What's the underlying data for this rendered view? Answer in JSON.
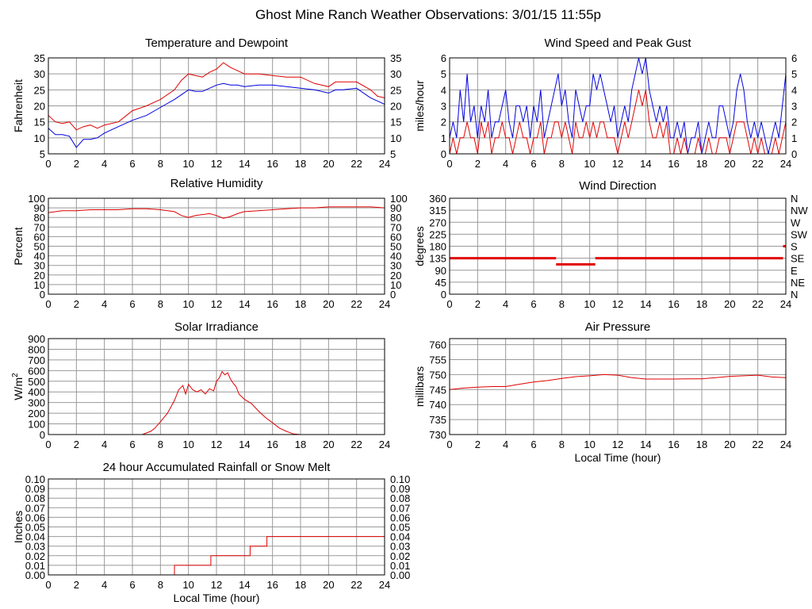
{
  "page_title": "Ghost Mine Ranch Weather Observations: 3/01/15 11:55p",
  "colors": {
    "primary": "#e00000",
    "secondary": "#0000e0",
    "grid": "#999999",
    "frame": "#000000"
  },
  "chart_data": [
    {
      "id": "temperature",
      "type": "line",
      "title": "Temperature and Dewpoint",
      "xlabel": "",
      "ylabel": "Fahrenheit",
      "xlim": [
        0,
        24
      ],
      "ylim": [
        5,
        35
      ],
      "x_ticks": [
        "0",
        "2",
        "4",
        "6",
        "8",
        "10",
        "12",
        "14",
        "16",
        "18",
        "20",
        "22",
        "24"
      ],
      "y_ticks": [
        "5",
        "10",
        "15",
        "20",
        "25",
        "30",
        "35"
      ],
      "right_ticks": [
        "5",
        "10",
        "15",
        "20",
        "25",
        "30",
        "35"
      ],
      "series": [
        {
          "color": "#e00000",
          "x": [
            0,
            0.5,
            1,
            1.5,
            2,
            2.5,
            3,
            3.5,
            4,
            5,
            6,
            7,
            8,
            9,
            9.5,
            10,
            10.5,
            11,
            11.5,
            12,
            12.5,
            13,
            13.5,
            14,
            15,
            16,
            17,
            18,
            19,
            19.5,
            20,
            20.5,
            21,
            22,
            23,
            23.5,
            24
          ],
          "values": [
            17,
            15,
            14.5,
            15,
            12.5,
            13.5,
            14,
            13,
            14,
            15,
            18.5,
            20,
            22,
            25,
            28,
            30,
            29.5,
            29,
            30.5,
            31.5,
            33.5,
            32,
            31,
            30,
            30,
            29.5,
            29,
            29,
            27,
            26.5,
            26,
            27.5,
            27.5,
            27.5,
            25,
            23,
            22.5
          ]
        },
        {
          "color": "#0000e0",
          "x": [
            0,
            0.5,
            1,
            1.5,
            2,
            2.5,
            3,
            3.5,
            4,
            5,
            6,
            7,
            8,
            9,
            9.5,
            10,
            10.5,
            11,
            11.5,
            12,
            12.5,
            13,
            13.5,
            14,
            15,
            16,
            17,
            18,
            19,
            19.5,
            20,
            20.5,
            21,
            22,
            23,
            23.5,
            24
          ],
          "values": [
            13,
            11,
            11,
            10.5,
            7,
            9.5,
            9.5,
            10,
            11.5,
            13.5,
            15.5,
            17,
            19.5,
            22,
            23.5,
            25,
            24.5,
            24.5,
            25.5,
            26.5,
            27,
            26.5,
            26.5,
            26,
            26.5,
            26.5,
            26,
            25.5,
            25,
            24.5,
            24,
            25,
            25,
            25.5,
            22.5,
            21.5,
            20.5
          ]
        }
      ]
    },
    {
      "id": "wind-speed",
      "type": "line",
      "title": "Wind Speed and Peak Gust",
      "xlabel": "",
      "ylabel": "miles/hour",
      "xlim": [
        0,
        24
      ],
      "ylim": [
        0,
        6
      ],
      "x_ticks": [
        "0",
        "2",
        "4",
        "6",
        "8",
        "10",
        "12",
        "14",
        "16",
        "18",
        "20",
        "22",
        "24"
      ],
      "y_ticks": [
        "0",
        "1",
        "2",
        "3",
        "4",
        "5",
        "6"
      ],
      "right_ticks": [
        "0",
        "1",
        "2",
        "3",
        "4",
        "5",
        "6"
      ],
      "series": [
        {
          "color": "#0000e0",
          "x": [
            0,
            0.25,
            0.5,
            0.75,
            1,
            1.25,
            1.5,
            1.75,
            2,
            2.25,
            2.5,
            2.75,
            3,
            3.25,
            3.5,
            3.75,
            4,
            4.25,
            4.5,
            4.75,
            5,
            5.25,
            5.5,
            5.75,
            6,
            6.25,
            6.5,
            6.75,
            7,
            7.25,
            7.5,
            7.75,
            8,
            8.25,
            8.5,
            8.75,
            9,
            9.25,
            9.5,
            9.75,
            10,
            10.25,
            10.5,
            10.75,
            11,
            11.25,
            11.5,
            11.75,
            12,
            12.25,
            12.5,
            12.75,
            13,
            13.25,
            13.5,
            13.75,
            14,
            14.25,
            14.5,
            14.75,
            15,
            15.25,
            15.5,
            15.75,
            16,
            16.25,
            16.5,
            16.75,
            17,
            17.25,
            17.5,
            17.75,
            18,
            18.25,
            18.5,
            18.75,
            19,
            19.25,
            19.5,
            19.75,
            20,
            20.25,
            20.5,
            20.75,
            21,
            21.25,
            21.5,
            21.75,
            22,
            22.25,
            22.5,
            22.75,
            23,
            23.25,
            23.5,
            23.75,
            24
          ],
          "values": [
            1,
            2,
            1,
            4,
            2,
            5,
            2,
            3,
            1,
            3,
            2,
            4,
            1,
            2,
            2,
            3,
            4,
            2,
            1,
            3,
            3,
            2,
            3,
            1,
            3,
            2,
            4,
            1,
            2,
            3,
            4,
            5,
            3,
            4,
            2,
            1,
            4,
            3,
            2,
            3,
            3,
            5,
            4,
            5,
            4,
            3,
            2,
            3,
            1,
            2,
            3,
            2,
            4,
            5,
            6,
            5,
            6,
            4,
            3,
            2,
            3,
            2,
            3,
            1,
            1,
            2,
            1,
            2,
            0,
            1,
            1,
            2,
            0,
            1,
            2,
            1,
            1,
            3,
            3,
            2,
            1,
            2,
            4,
            5,
            4,
            2,
            1,
            2,
            1,
            2,
            1,
            0,
            1,
            2,
            1,
            3,
            5
          ]
        },
        {
          "color": "#e00000",
          "x": [
            0,
            0.25,
            0.5,
            0.75,
            1,
            1.25,
            1.5,
            1.75,
            2,
            2.25,
            2.5,
            2.75,
            3,
            3.25,
            3.5,
            3.75,
            4,
            4.25,
            4.5,
            4.75,
            5,
            5.25,
            5.5,
            5.75,
            6,
            6.25,
            6.5,
            6.75,
            7,
            7.25,
            7.5,
            7.75,
            8,
            8.25,
            8.5,
            8.75,
            9,
            9.25,
            9.5,
            9.75,
            10,
            10.25,
            10.5,
            10.75,
            11,
            11.25,
            11.5,
            11.75,
            12,
            12.25,
            12.5,
            12.75,
            13,
            13.25,
            13.5,
            13.75,
            14,
            14.25,
            14.5,
            14.75,
            15,
            15.25,
            15.5,
            15.75,
            16,
            16.25,
            16.5,
            16.75,
            17,
            17.25,
            17.5,
            17.75,
            18,
            18.25,
            18.5,
            18.75,
            19,
            19.25,
            19.5,
            19.75,
            20,
            20.25,
            20.5,
            20.75,
            21,
            21.25,
            21.5,
            21.75,
            22,
            22.25,
            22.5,
            22.75,
            23,
            23.25,
            23.5,
            23.75,
            24
          ],
          "values": [
            0,
            1,
            0,
            1,
            1,
            2,
            1,
            1,
            0,
            2,
            1,
            2,
            0,
            1,
            1,
            2,
            1,
            1,
            0,
            1,
            2,
            1,
            1,
            0,
            1,
            1,
            2,
            0,
            1,
            1,
            2,
            2,
            1,
            2,
            1,
            0,
            2,
            1,
            1,
            2,
            1,
            2,
            1,
            2,
            2,
            1,
            1,
            1,
            0,
            1,
            2,
            1,
            2,
            3,
            4,
            3,
            4,
            2,
            1,
            1,
            2,
            1,
            2,
            0,
            0,
            1,
            0,
            1,
            0,
            0,
            0,
            1,
            0,
            0,
            1,
            0,
            0,
            1,
            1,
            1,
            0,
            1,
            2,
            2,
            2,
            1,
            0,
            1,
            0,
            1,
            0,
            0,
            0,
            1,
            0,
            1,
            2
          ]
        }
      ]
    },
    {
      "id": "humidity",
      "type": "line",
      "title": "Relative Humidity",
      "xlabel": "",
      "ylabel": "Percent",
      "xlim": [
        0,
        24
      ],
      "ylim": [
        0,
        100
      ],
      "x_ticks": [
        "0",
        "2",
        "4",
        "6",
        "8",
        "10",
        "12",
        "14",
        "16",
        "18",
        "20",
        "22",
        "24"
      ],
      "y_ticks": [
        "0",
        "10",
        "20",
        "30",
        "40",
        "50",
        "60",
        "70",
        "80",
        "90",
        "100"
      ],
      "right_ticks": [
        "0",
        "10",
        "20",
        "30",
        "40",
        "50",
        "60",
        "70",
        "80",
        "90",
        "100"
      ],
      "series": [
        {
          "color": "#e00000",
          "x": [
            0,
            1,
            2,
            3,
            4,
            5,
            6,
            7,
            8,
            9,
            9.5,
            10,
            10.5,
            11,
            11.5,
            12,
            12.5,
            13,
            13.5,
            14,
            15,
            16,
            17,
            18,
            19,
            20,
            21,
            22,
            23,
            24
          ],
          "values": [
            85,
            87,
            87,
            88,
            88,
            88,
            89,
            89,
            88,
            86,
            82,
            80,
            82,
            83,
            84,
            82,
            79,
            81,
            84,
            86,
            87,
            88,
            89,
            90,
            90,
            91,
            91,
            91,
            91,
            90
          ]
        }
      ]
    },
    {
      "id": "wind-direction",
      "type": "line",
      "title": "Wind Direction",
      "xlabel": "",
      "ylabel": "degrees",
      "xlim": [
        0,
        24
      ],
      "ylim": [
        0,
        360
      ],
      "x_ticks": [
        "0",
        "2",
        "4",
        "6",
        "8",
        "10",
        "12",
        "14",
        "16",
        "18",
        "20",
        "22",
        "24"
      ],
      "y_ticks": [
        "0",
        "45",
        "90",
        "135",
        "180",
        "225",
        "270",
        "315",
        "360"
      ],
      "right_ticks": [
        "N",
        "NE",
        "E",
        "SE",
        "S",
        "SW",
        "W",
        "NW",
        "N"
      ],
      "segments": [
        {
          "x": [
            0,
            7.6
          ],
          "value": 135
        },
        {
          "x": [
            7.6,
            10.4
          ],
          "value": 112
        },
        {
          "x": [
            10.4,
            23.8
          ],
          "value": 135
        },
        {
          "x": [
            23.8,
            24
          ],
          "value": 180
        }
      ]
    },
    {
      "id": "solar",
      "type": "line",
      "title": "Solar Irradiance",
      "xlabel": "",
      "ylabel": "W/m",
      "ylabel_sup": "2",
      "xlim": [
        0,
        24
      ],
      "ylim": [
        0,
        900
      ],
      "x_ticks": [
        "0",
        "2",
        "4",
        "6",
        "8",
        "10",
        "12",
        "14",
        "16",
        "18",
        "20",
        "22",
        "24"
      ],
      "y_ticks": [
        "0",
        "100",
        "200",
        "300",
        "400",
        "500",
        "600",
        "700",
        "800",
        "900"
      ],
      "right_ticks": [],
      "series": [
        {
          "color": "#e00000",
          "x": [
            0,
            6.7,
            7,
            7.3,
            7.6,
            8,
            8.5,
            9,
            9.3,
            9.6,
            9.8,
            10,
            10.3,
            10.6,
            10.9,
            11.2,
            11.5,
            11.8,
            12,
            12.2,
            12.4,
            12.6,
            12.8,
            13,
            13.2,
            13.4,
            13.6,
            14,
            14.5,
            15,
            15.5,
            16,
            16.5,
            17,
            17.5,
            18,
            24
          ],
          "values": [
            0,
            0,
            15,
            30,
            60,
            120,
            200,
            320,
            420,
            460,
            380,
            470,
            420,
            400,
            420,
            380,
            430,
            410,
            500,
            530,
            590,
            560,
            580,
            520,
            480,
            450,
            380,
            330,
            290,
            220,
            160,
            110,
            60,
            30,
            5,
            0,
            0
          ]
        }
      ]
    },
    {
      "id": "pressure",
      "type": "line",
      "title": "Air Pressure",
      "xlabel": "Local Time (hour)",
      "ylabel": "millibars",
      "xlim": [
        0,
        24
      ],
      "ylim": [
        730,
        762
      ],
      "x_ticks": [
        "0",
        "2",
        "4",
        "6",
        "8",
        "10",
        "12",
        "14",
        "16",
        "18",
        "20",
        "22",
        "24"
      ],
      "y_ticks": [
        "730",
        "735",
        "740",
        "745",
        "750",
        "755",
        "760"
      ],
      "right_ticks": [],
      "series": [
        {
          "color": "#e00000",
          "x": [
            0,
            1,
            2,
            3,
            4,
            5,
            6,
            7,
            8,
            9,
            10,
            11,
            12,
            13,
            14,
            15,
            16,
            17,
            18,
            19,
            20,
            21,
            22,
            23,
            24
          ],
          "values": [
            745,
            745.5,
            745.8,
            746,
            746,
            746.8,
            747.5,
            748,
            748.7,
            749.3,
            749.6,
            750,
            749.8,
            749,
            748.5,
            748.5,
            748.5,
            748.6,
            748.6,
            749,
            749.4,
            749.6,
            749.8,
            749.2,
            749
          ]
        }
      ]
    },
    {
      "id": "rainfall",
      "type": "line",
      "title": "24 hour Accumulated Rainfall or Snow Melt",
      "xlabel": "Local Time (hour)",
      "ylabel": "Inches",
      "xlim": [
        0,
        24
      ],
      "ylim": [
        0,
        0.1
      ],
      "x_ticks": [
        "0",
        "2",
        "4",
        "6",
        "8",
        "10",
        "12",
        "14",
        "16",
        "18",
        "20",
        "22",
        "24"
      ],
      "y_ticks": [
        "0.00",
        "0.01",
        "0.02",
        "0.03",
        "0.04",
        "0.05",
        "0.06",
        "0.07",
        "0.08",
        "0.09",
        "0.10"
      ],
      "right_ticks": [
        "0.00",
        "0.01",
        "0.02",
        "0.03",
        "0.04",
        "0.05",
        "0.06",
        "0.07",
        "0.08",
        "0.09",
        "0.10"
      ],
      "series": [
        {
          "color": "#e00000",
          "x": [
            0,
            9,
            9,
            11.6,
            11.6,
            14.4,
            14.4,
            15.6,
            15.6,
            24
          ],
          "values": [
            0,
            0,
            0.01,
            0.01,
            0.02,
            0.02,
            0.03,
            0.03,
            0.04,
            0.04
          ]
        }
      ]
    }
  ]
}
